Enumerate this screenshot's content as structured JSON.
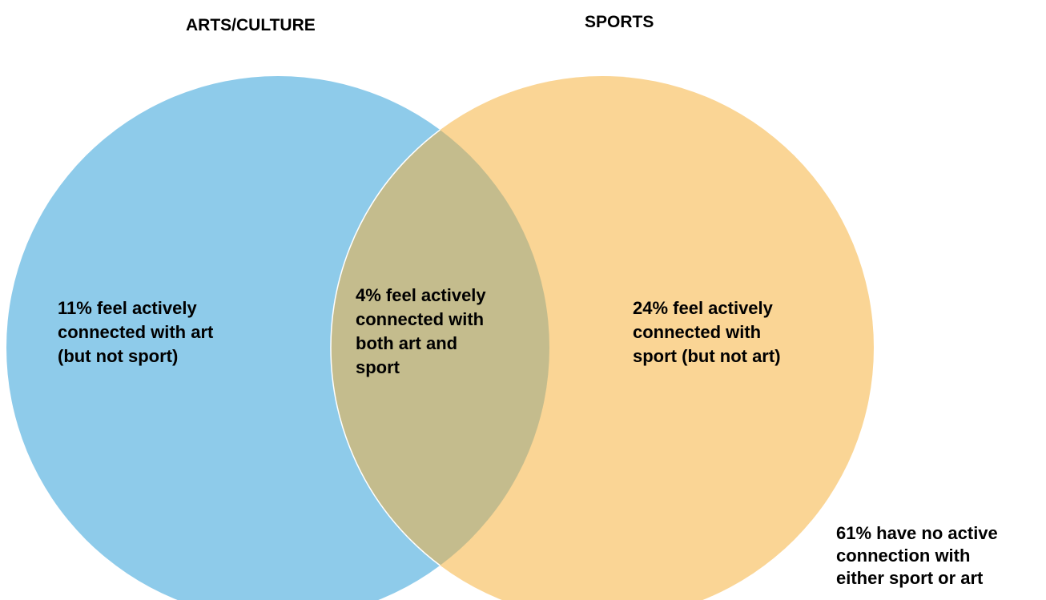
{
  "sets": {
    "arts": {
      "title": "ARTS/CULTURE",
      "color": "#8ECBEA"
    },
    "sports": {
      "title": "SPORTS",
      "color": "#FAD595"
    },
    "overlap_color": "#C4BC8D"
  },
  "regions": {
    "art_only": {
      "percent": 11,
      "label": "11% feel actively\nconnected with art\n(but not sport)"
    },
    "both": {
      "percent": 4,
      "label": "4% feel actively\nconnected with\nboth art and\nsport"
    },
    "sport_only": {
      "percent": 24,
      "label": "24% feel actively\nconnected with\nsport (but not art)"
    },
    "neither": {
      "percent": 61,
      "label": "61% have no active\nconnection with\neither sport or art"
    }
  }
}
